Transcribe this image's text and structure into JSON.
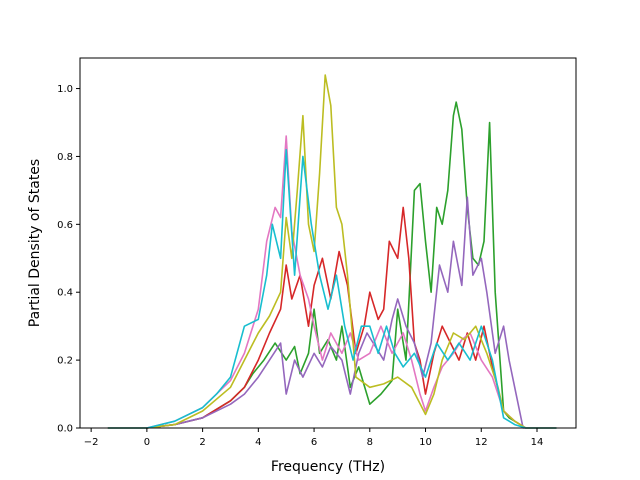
{
  "chart_data": {
    "type": "line",
    "title": "",
    "xlabel": "Frequency (THz)",
    "ylabel": "Partial Density of States",
    "xlim": [
      -2.4,
      15.4
    ],
    "ylim": [
      0,
      1.09
    ],
    "x_ticks": [
      -2,
      0,
      2,
      4,
      6,
      8,
      10,
      12,
      14
    ],
    "x_tick_labels": [
      "−2",
      "0",
      "2",
      "4",
      "6",
      "8",
      "10",
      "12",
      "14"
    ],
    "y_ticks": [
      0.0,
      0.2,
      0.4,
      0.6,
      0.8,
      1.0
    ],
    "y_tick_labels": [
      "0.0",
      "0.2",
      "0.4",
      "0.6",
      "0.8",
      "1.0"
    ],
    "grid": false,
    "legend": "none",
    "series": [
      {
        "color": "#2ca02c",
        "points": [
          [
            -1.4,
            0
          ],
          [
            0,
            0
          ],
          [
            1,
            0.01
          ],
          [
            2,
            0.03
          ],
          [
            3,
            0.08
          ],
          [
            3.5,
            0.12
          ],
          [
            3.8,
            0.16
          ],
          [
            4.2,
            0.2
          ],
          [
            4.6,
            0.25
          ],
          [
            5.0,
            0.2
          ],
          [
            5.3,
            0.24
          ],
          [
            5.5,
            0.16
          ],
          [
            5.8,
            0.22
          ],
          [
            6.0,
            0.35
          ],
          [
            6.2,
            0.22
          ],
          [
            6.5,
            0.26
          ],
          [
            6.8,
            0.2
          ],
          [
            7.0,
            0.3
          ],
          [
            7.3,
            0.12
          ],
          [
            7.6,
            0.18
          ],
          [
            8.0,
            0.07
          ],
          [
            8.4,
            0.1
          ],
          [
            8.8,
            0.14
          ],
          [
            9.0,
            0.35
          ],
          [
            9.3,
            0.2
          ],
          [
            9.6,
            0.7
          ],
          [
            9.8,
            0.72
          ],
          [
            10.0,
            0.55
          ],
          [
            10.2,
            0.4
          ],
          [
            10.4,
            0.65
          ],
          [
            10.6,
            0.6
          ],
          [
            10.8,
            0.7
          ],
          [
            11.0,
            0.92
          ],
          [
            11.1,
            0.96
          ],
          [
            11.3,
            0.88
          ],
          [
            11.5,
            0.65
          ],
          [
            11.7,
            0.5
          ],
          [
            11.9,
            0.48
          ],
          [
            12.1,
            0.55
          ],
          [
            12.3,
            0.9
          ],
          [
            12.5,
            0.4
          ],
          [
            12.8,
            0.05
          ],
          [
            13.0,
            0.03
          ],
          [
            13.2,
            0.02
          ],
          [
            13.6,
            0
          ],
          [
            14.7,
            0
          ]
        ]
      },
      {
        "color": "#d62728",
        "points": [
          [
            -1.4,
            0
          ],
          [
            0,
            0
          ],
          [
            1,
            0.01
          ],
          [
            2,
            0.03
          ],
          [
            3,
            0.08
          ],
          [
            3.5,
            0.12
          ],
          [
            4.0,
            0.2
          ],
          [
            4.4,
            0.28
          ],
          [
            4.8,
            0.35
          ],
          [
            5.0,
            0.48
          ],
          [
            5.2,
            0.38
          ],
          [
            5.5,
            0.45
          ],
          [
            5.8,
            0.3
          ],
          [
            6.0,
            0.42
          ],
          [
            6.3,
            0.5
          ],
          [
            6.6,
            0.38
          ],
          [
            6.9,
            0.52
          ],
          [
            7.2,
            0.42
          ],
          [
            7.5,
            0.22
          ],
          [
            7.8,
            0.3
          ],
          [
            8.0,
            0.4
          ],
          [
            8.3,
            0.32
          ],
          [
            8.5,
            0.35
          ],
          [
            8.7,
            0.55
          ],
          [
            9.0,
            0.5
          ],
          [
            9.2,
            0.65
          ],
          [
            9.4,
            0.5
          ],
          [
            9.6,
            0.25
          ],
          [
            9.8,
            0.2
          ],
          [
            10.0,
            0.1
          ],
          [
            10.3,
            0.22
          ],
          [
            10.6,
            0.3
          ],
          [
            10.9,
            0.25
          ],
          [
            11.2,
            0.2
          ],
          [
            11.5,
            0.28
          ],
          [
            11.8,
            0.2
          ],
          [
            12.1,
            0.3
          ],
          [
            12.4,
            0.18
          ],
          [
            12.8,
            0.05
          ],
          [
            13.2,
            0.02
          ],
          [
            13.6,
            0
          ],
          [
            14.7,
            0
          ]
        ]
      },
      {
        "color": "#9467bd",
        "points": [
          [
            -1.4,
            0
          ],
          [
            0,
            0
          ],
          [
            1,
            0.01
          ],
          [
            2,
            0.03
          ],
          [
            3,
            0.07
          ],
          [
            3.5,
            0.1
          ],
          [
            4.0,
            0.15
          ],
          [
            4.4,
            0.2
          ],
          [
            4.8,
            0.25
          ],
          [
            5.0,
            0.1
          ],
          [
            5.3,
            0.2
          ],
          [
            5.6,
            0.15
          ],
          [
            6.0,
            0.22
          ],
          [
            6.3,
            0.18
          ],
          [
            6.6,
            0.24
          ],
          [
            7.0,
            0.2
          ],
          [
            7.3,
            0.1
          ],
          [
            7.6,
            0.22
          ],
          [
            7.9,
            0.28
          ],
          [
            8.2,
            0.24
          ],
          [
            8.5,
            0.2
          ],
          [
            8.8,
            0.32
          ],
          [
            9.0,
            0.38
          ],
          [
            9.3,
            0.3
          ],
          [
            9.6,
            0.25
          ],
          [
            9.9,
            0.15
          ],
          [
            10.2,
            0.25
          ],
          [
            10.5,
            0.48
          ],
          [
            10.8,
            0.4
          ],
          [
            11.0,
            0.55
          ],
          [
            11.3,
            0.42
          ],
          [
            11.5,
            0.68
          ],
          [
            11.7,
            0.45
          ],
          [
            12.0,
            0.5
          ],
          [
            12.2,
            0.4
          ],
          [
            12.5,
            0.22
          ],
          [
            12.8,
            0.3
          ],
          [
            13.0,
            0.2
          ],
          [
            13.2,
            0.12
          ],
          [
            13.5,
            0
          ],
          [
            14.7,
            0
          ]
        ]
      },
      {
        "color": "#e377c2",
        "points": [
          [
            -1.4,
            0
          ],
          [
            0,
            0
          ],
          [
            1,
            0.02
          ],
          [
            2,
            0.06
          ],
          [
            2.5,
            0.1
          ],
          [
            3.0,
            0.14
          ],
          [
            3.5,
            0.22
          ],
          [
            4.0,
            0.35
          ],
          [
            4.3,
            0.55
          ],
          [
            4.6,
            0.65
          ],
          [
            4.8,
            0.62
          ],
          [
            5.0,
            0.86
          ],
          [
            5.2,
            0.58
          ],
          [
            5.5,
            0.45
          ],
          [
            5.8,
            0.38
          ],
          [
            6.0,
            0.3
          ],
          [
            6.3,
            0.2
          ],
          [
            6.6,
            0.28
          ],
          [
            7.0,
            0.22
          ],
          [
            7.3,
            0.28
          ],
          [
            7.6,
            0.2
          ],
          [
            8.0,
            0.22
          ],
          [
            8.4,
            0.3
          ],
          [
            8.8,
            0.22
          ],
          [
            9.2,
            0.28
          ],
          [
            9.5,
            0.2
          ],
          [
            9.8,
            0.1
          ],
          [
            10.0,
            0.05
          ],
          [
            10.3,
            0.12
          ],
          [
            10.6,
            0.18
          ],
          [
            11.0,
            0.22
          ],
          [
            11.3,
            0.26
          ],
          [
            11.6,
            0.28
          ],
          [
            12.0,
            0.2
          ],
          [
            12.4,
            0.15
          ],
          [
            12.8,
            0.05
          ],
          [
            13.2,
            0.02
          ],
          [
            13.6,
            0
          ],
          [
            14.7,
            0
          ]
        ]
      },
      {
        "color": "#bcbd22",
        "points": [
          [
            -1.4,
            0
          ],
          [
            0,
            0
          ],
          [
            1,
            0.01
          ],
          [
            2,
            0.05
          ],
          [
            3,
            0.12
          ],
          [
            3.5,
            0.2
          ],
          [
            4.0,
            0.28
          ],
          [
            4.4,
            0.33
          ],
          [
            4.8,
            0.4
          ],
          [
            5.0,
            0.62
          ],
          [
            5.2,
            0.5
          ],
          [
            5.4,
            0.7
          ],
          [
            5.6,
            0.92
          ],
          [
            5.8,
            0.6
          ],
          [
            6.0,
            0.52
          ],
          [
            6.2,
            0.75
          ],
          [
            6.4,
            1.04
          ],
          [
            6.6,
            0.95
          ],
          [
            6.8,
            0.65
          ],
          [
            7.0,
            0.6
          ],
          [
            7.2,
            0.45
          ],
          [
            7.5,
            0.15
          ],
          [
            8.0,
            0.12
          ],
          [
            8.5,
            0.13
          ],
          [
            9.0,
            0.15
          ],
          [
            9.5,
            0.12
          ],
          [
            10.0,
            0.04
          ],
          [
            10.3,
            0.1
          ],
          [
            10.6,
            0.2
          ],
          [
            11.0,
            0.28
          ],
          [
            11.4,
            0.26
          ],
          [
            11.8,
            0.3
          ],
          [
            12.2,
            0.22
          ],
          [
            12.6,
            0.12
          ],
          [
            12.8,
            0.05
          ],
          [
            13.2,
            0.02
          ],
          [
            13.6,
            0
          ],
          [
            14.7,
            0
          ]
        ]
      },
      {
        "color": "#17becf",
        "points": [
          [
            -1.4,
            0
          ],
          [
            0,
            0
          ],
          [
            1,
            0.02
          ],
          [
            2,
            0.06
          ],
          [
            2.5,
            0.1
          ],
          [
            3.0,
            0.15
          ],
          [
            3.5,
            0.3
          ],
          [
            4.0,
            0.32
          ],
          [
            4.3,
            0.45
          ],
          [
            4.5,
            0.6
          ],
          [
            4.8,
            0.5
          ],
          [
            5.0,
            0.82
          ],
          [
            5.3,
            0.45
          ],
          [
            5.6,
            0.8
          ],
          [
            5.9,
            0.6
          ],
          [
            6.2,
            0.45
          ],
          [
            6.5,
            0.35
          ],
          [
            6.8,
            0.45
          ],
          [
            7.1,
            0.3
          ],
          [
            7.4,
            0.2
          ],
          [
            7.7,
            0.3
          ],
          [
            8.0,
            0.3
          ],
          [
            8.3,
            0.22
          ],
          [
            8.6,
            0.3
          ],
          [
            8.9,
            0.22
          ],
          [
            9.2,
            0.18
          ],
          [
            9.6,
            0.22
          ],
          [
            10.0,
            0.15
          ],
          [
            10.4,
            0.25
          ],
          [
            10.8,
            0.2
          ],
          [
            11.2,
            0.25
          ],
          [
            11.6,
            0.2
          ],
          [
            12.0,
            0.3
          ],
          [
            12.4,
            0.2
          ],
          [
            12.8,
            0.03
          ],
          [
            13.2,
            0.01
          ],
          [
            13.6,
            0
          ],
          [
            14.7,
            0
          ]
        ]
      }
    ]
  }
}
